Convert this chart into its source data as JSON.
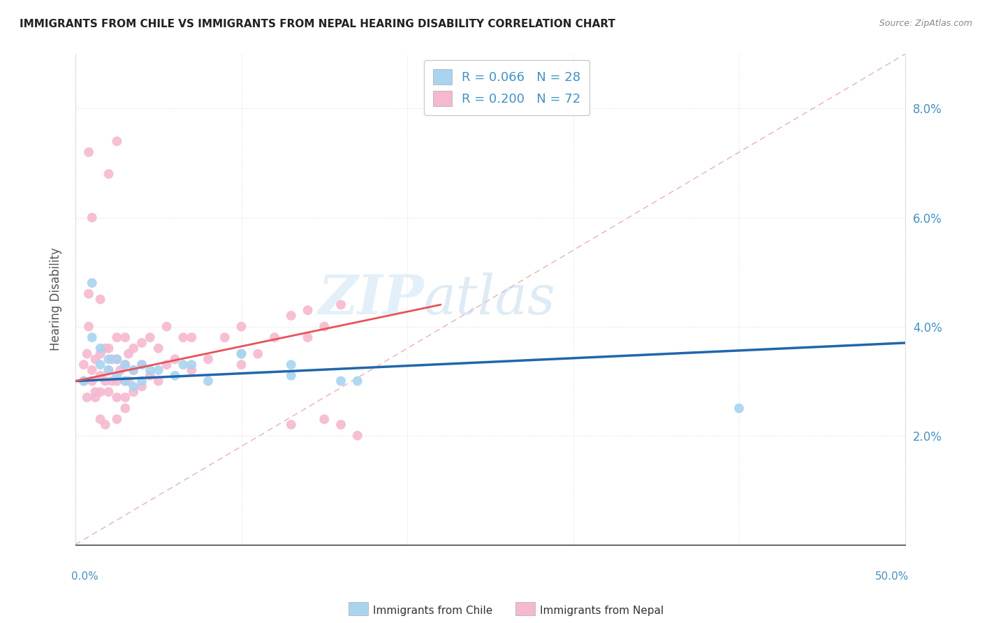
{
  "title": "IMMIGRANTS FROM CHILE VS IMMIGRANTS FROM NEPAL HEARING DISABILITY CORRELATION CHART",
  "source": "Source: ZipAtlas.com",
  "ylabel": "Hearing Disability",
  "xlim": [
    0.0,
    0.5
  ],
  "ylim": [
    0.0,
    0.09
  ],
  "yticks": [
    0.02,
    0.04,
    0.06,
    0.08
  ],
  "ytick_labels": [
    "2.0%",
    "4.0%",
    "6.0%",
    "8.0%"
  ],
  "chile_R": 0.066,
  "chile_N": 28,
  "nepal_R": 0.2,
  "nepal_N": 72,
  "chile_color": "#a8d4f0",
  "nepal_color": "#f5b8d0",
  "chile_line_color": "#2166ac",
  "nepal_line_color": "#e8525a",
  "diag_line_color": "#e8b0b8",
  "chile_scatter_x": [
    0.005,
    0.01,
    0.01,
    0.015,
    0.015,
    0.02,
    0.02,
    0.025,
    0.025,
    0.03,
    0.03,
    0.035,
    0.035,
    0.04,
    0.04,
    0.045,
    0.05,
    0.06,
    0.065,
    0.07,
    0.1,
    0.13,
    0.13,
    0.16,
    0.4,
    0.1,
    0.17,
    0.08
  ],
  "chile_scatter_y": [
    0.03,
    0.048,
    0.038,
    0.033,
    0.036,
    0.032,
    0.034,
    0.031,
    0.034,
    0.03,
    0.033,
    0.029,
    0.032,
    0.03,
    0.033,
    0.032,
    0.032,
    0.031,
    0.033,
    0.033,
    0.035,
    0.031,
    0.033,
    0.03,
    0.025,
    0.035,
    0.03,
    0.03
  ],
  "nepal_scatter_x": [
    0.005,
    0.005,
    0.007,
    0.007,
    0.008,
    0.008,
    0.01,
    0.01,
    0.01,
    0.012,
    0.012,
    0.015,
    0.015,
    0.015,
    0.015,
    0.018,
    0.018,
    0.02,
    0.02,
    0.02,
    0.022,
    0.022,
    0.025,
    0.025,
    0.025,
    0.025,
    0.027,
    0.03,
    0.03,
    0.03,
    0.03,
    0.032,
    0.032,
    0.035,
    0.035,
    0.035,
    0.04,
    0.04,
    0.04,
    0.045,
    0.045,
    0.05,
    0.05,
    0.055,
    0.055,
    0.06,
    0.065,
    0.07,
    0.07,
    0.08,
    0.09,
    0.1,
    0.1,
    0.11,
    0.12,
    0.13,
    0.14,
    0.14,
    0.15,
    0.16,
    0.03,
    0.025,
    0.018,
    0.015,
    0.012,
    0.008,
    0.02,
    0.025,
    0.13,
    0.15,
    0.16,
    0.17
  ],
  "nepal_scatter_y": [
    0.03,
    0.033,
    0.027,
    0.035,
    0.04,
    0.046,
    0.03,
    0.032,
    0.06,
    0.028,
    0.034,
    0.028,
    0.031,
    0.035,
    0.045,
    0.03,
    0.036,
    0.028,
    0.032,
    0.036,
    0.03,
    0.034,
    0.027,
    0.03,
    0.034,
    0.038,
    0.032,
    0.027,
    0.03,
    0.033,
    0.038,
    0.03,
    0.035,
    0.028,
    0.032,
    0.036,
    0.029,
    0.033,
    0.037,
    0.031,
    0.038,
    0.03,
    0.036,
    0.033,
    0.04,
    0.034,
    0.038,
    0.032,
    0.038,
    0.034,
    0.038,
    0.033,
    0.04,
    0.035,
    0.038,
    0.042,
    0.038,
    0.043,
    0.04,
    0.044,
    0.025,
    0.023,
    0.022,
    0.023,
    0.027,
    0.072,
    0.068,
    0.074,
    0.022,
    0.023,
    0.022,
    0.02
  ],
  "chile_trend_x": [
    0.0,
    0.5
  ],
  "chile_trend_y": [
    0.03,
    0.037
  ],
  "nepal_trend_x": [
    0.0,
    0.22
  ],
  "nepal_trend_y": [
    0.03,
    0.044
  ]
}
